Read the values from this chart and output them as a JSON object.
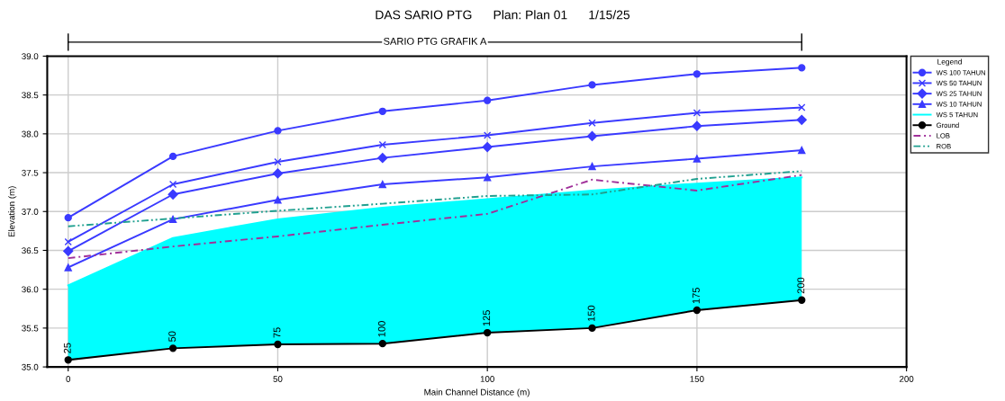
{
  "chart_data": {
    "type": "line",
    "title": "DAS SARIO PTG      Plan: Plan 01      1/15/25",
    "subtitle": "SARIO PTG GRAFIK A",
    "xlabel": "Main Channel Distance (m)",
    "ylabel": "Elevation (m)",
    "legend_title": "Legend",
    "x": [
      0,
      25,
      50,
      75,
      100,
      125,
      150,
      175
    ],
    "series": [
      {
        "name": "WS 100 TAHUN",
        "color": "#3a3aff",
        "marker": "circle",
        "values": [
          36.92,
          37.71,
          38.04,
          38.29,
          38.43,
          38.63,
          38.77,
          38.85
        ]
      },
      {
        "name": "WS 50 TAHUN",
        "color": "#3a3aff",
        "marker": "cross",
        "values": [
          36.61,
          37.35,
          37.64,
          37.86,
          37.98,
          38.14,
          38.27,
          38.34
        ]
      },
      {
        "name": "WS 25 TAHUN",
        "color": "#3a3aff",
        "marker": "diamond",
        "values": [
          36.49,
          37.22,
          37.49,
          37.69,
          37.83,
          37.97,
          38.1,
          38.18
        ]
      },
      {
        "name": "WS 10 TAHUN",
        "color": "#3a3aff",
        "marker": "triangle",
        "values": [
          36.28,
          36.9,
          37.15,
          37.35,
          37.44,
          37.58,
          37.68,
          37.79
        ]
      },
      {
        "name": "WS 5 TAHUN",
        "type": "area",
        "color": "#00ffff",
        "marker": "none",
        "values": [
          36.05,
          36.66,
          36.9,
          37.05,
          37.16,
          37.27,
          37.36,
          37.44
        ]
      },
      {
        "name": "Ground",
        "color": "#000000",
        "marker": "circle",
        "values": [
          35.09,
          35.24,
          35.29,
          35.3,
          35.44,
          35.5,
          35.73,
          35.86
        ]
      },
      {
        "name": "LOB",
        "color": "#a0309a",
        "marker": "none",
        "line_style": "dashed",
        "values": [
          36.4,
          36.55,
          36.68,
          36.83,
          36.97,
          37.41,
          37.27,
          37.47
        ]
      },
      {
        "name": "ROB",
        "color": "#20a090",
        "marker": "none",
        "line_style": "dotted",
        "values": [
          36.81,
          36.91,
          37.01,
          37.1,
          37.2,
          37.22,
          37.42,
          37.52
        ]
      }
    ],
    "annotations": [
      {
        "text": "25",
        "x": 0,
        "y": 35.09
      },
      {
        "text": "50",
        "x": 25,
        "y": 35.24
      },
      {
        "text": "75",
        "x": 50,
        "y": 35.29
      },
      {
        "text": "100",
        "x": 75,
        "y": 35.3
      },
      {
        "text": "125",
        "x": 100,
        "y": 35.44
      },
      {
        "text": "150",
        "x": 125,
        "y": 35.5
      },
      {
        "text": "175",
        "x": 150,
        "y": 35.73
      },
      {
        "text": "200",
        "x": 175,
        "y": 35.86
      }
    ],
    "xlim": [
      -5,
      200
    ],
    "xticks": [
      0,
      50,
      100,
      150,
      200
    ],
    "ylim": [
      35,
      39
    ],
    "yticks": [
      {
        "value": 35,
        "label": "35.0"
      },
      {
        "value": 35.5,
        "label": "35.5"
      },
      {
        "value": 36,
        "label": "36.0"
      },
      {
        "value": 36.5,
        "label": "36.5"
      },
      {
        "value": 37,
        "label": "37.0"
      },
      {
        "value": 37.5,
        "label": "37.5"
      },
      {
        "value": 38,
        "label": "38.0"
      },
      {
        "value": 38.5,
        "label": "38.5"
      },
      {
        "value": 39,
        "label": "39.0"
      }
    ],
    "grid": true,
    "legend": "top right"
  }
}
